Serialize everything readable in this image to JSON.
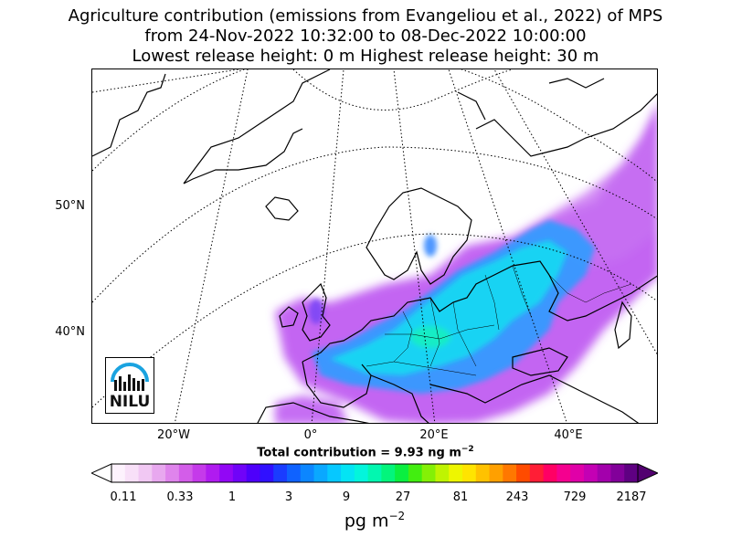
{
  "title": {
    "line1": "Agriculture contribution (emissions from Evangeliou et al., 2022) of MPS",
    "line2": "from 24-Nov-2022 10:32:00 to 08-Dec-2022 10:00:00",
    "line3": "Lowest release height: 0 m      Highest release height: 30 m"
  },
  "map": {
    "lat_labels": [
      "50°N",
      "40°N"
    ],
    "lon_labels": [
      "20°W",
      "0°",
      "20°E",
      "40°E"
    ],
    "total_prefix": "Total contribution = 9.93 ng m",
    "total_exp": "−2",
    "logo_text": "NILU",
    "logo_color": "#1aa3e0"
  },
  "colorbar": {
    "ticks": [
      "0.11",
      "0.33",
      "1",
      "3",
      "9",
      "27",
      "81",
      "243",
      "729",
      "2187"
    ],
    "unit_base": "pg m",
    "unit_exp": "−2",
    "colors": [
      "#fdf2fd",
      "#f8e0f8",
      "#f1c8f3",
      "#e8a8ef",
      "#df84ec",
      "#d35de9",
      "#c53aea",
      "#b01bf0",
      "#9207f5",
      "#7003f8",
      "#4e00fb",
      "#3010ff",
      "#1a3cff",
      "#0f62ff",
      "#0c86ff",
      "#0aa8ff",
      "#06c8ff",
      "#04e4f4",
      "#03f5dc",
      "#02f7b0",
      "#03f57c",
      "#0aef40",
      "#42ee10",
      "#84f006",
      "#bff402",
      "#eef600",
      "#ffe400",
      "#ffc200",
      "#ffa000",
      "#ff7800",
      "#ff4b00",
      "#ff1e36",
      "#ff0064",
      "#f5008f",
      "#e000a8",
      "#c400b4",
      "#a300ac",
      "#82009a",
      "#5f0082"
    ]
  }
}
